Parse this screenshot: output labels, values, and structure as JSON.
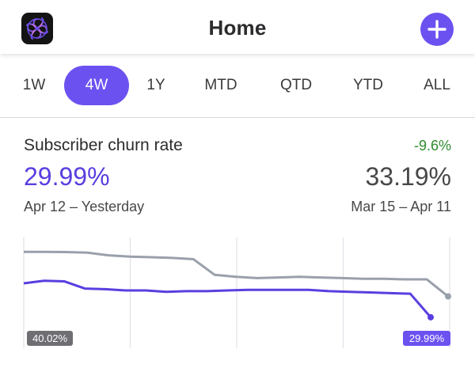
{
  "header": {
    "title": "Home",
    "logo_icon": "spiral-logo-icon",
    "add_icon": "plus-icon"
  },
  "ranges": {
    "active": "4W",
    "tabs": [
      "1W",
      "4W",
      "1Y",
      "MTD",
      "QTD",
      "YTD",
      "ALL"
    ]
  },
  "metric": {
    "title": "Subscriber churn rate",
    "change": "-9.6%",
    "current_value": "29.99%",
    "previous_value": "33.19%",
    "current_range": "Apr 12 – Yesterday",
    "previous_range": "Mar 15 – Apr 11"
  },
  "chart_data": {
    "type": "line",
    "series": [
      {
        "role": "current",
        "color": "#5b3ee0",
        "values": [
          35.2,
          35.6,
          35.5,
          34.4,
          34.3,
          34.1,
          34.1,
          33.9,
          34.0,
          34.0,
          34.1,
          34.2,
          34.2,
          34.2,
          34.2,
          34.0,
          33.9,
          33.8,
          33.7,
          33.6,
          29.99
        ]
      },
      {
        "role": "previous",
        "color": "#9aa0ab",
        "values": [
          40.02,
          40.02,
          40.0,
          39.9,
          39.5,
          39.3,
          39.2,
          39.1,
          38.9,
          36.5,
          36.2,
          36.0,
          36.1,
          36.2,
          36.1,
          36.0,
          35.9,
          35.9,
          35.8,
          35.8,
          33.19
        ]
      }
    ],
    "start_label": "40.02%",
    "end_label": "29.99%",
    "grid_vertical": 5
  },
  "colors": {
    "accent": "#6b52f0",
    "positive": "#2e8b2e",
    "current_line": "#5b3ee0",
    "previous_line": "#9aa0ab"
  }
}
